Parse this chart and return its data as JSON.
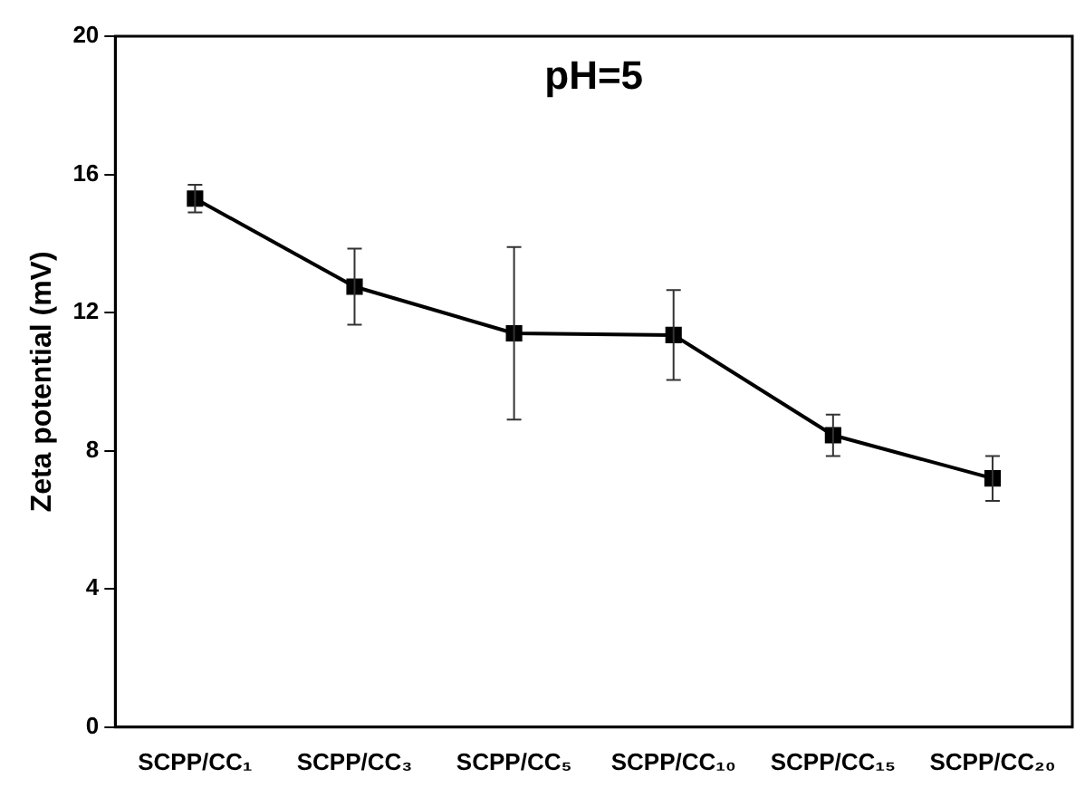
{
  "chart_data": {
    "type": "line",
    "title": "pH=5",
    "ylabel": "Zeta potential (mV)",
    "categories": [
      "SCPP/CC₁",
      "SCPP/CC₃",
      "SCPP/CC₅",
      "SCPP/CC₁₀",
      "SCPP/CC₁₅",
      "SCPP/CC₂₀"
    ],
    "series": [
      {
        "color": "#000000",
        "values": [
          15.3,
          12.75,
          11.4,
          11.35,
          8.45,
          7.2
        ],
        "errors": [
          0.4,
          1.1,
          2.5,
          1.3,
          0.6,
          0.65
        ]
      }
    ],
    "ylim": [
      0,
      20
    ],
    "yticks": [
      0,
      4,
      8,
      12,
      16,
      20
    ],
    "grid": false,
    "legend": false,
    "marker": "square",
    "line_style": "solid"
  }
}
